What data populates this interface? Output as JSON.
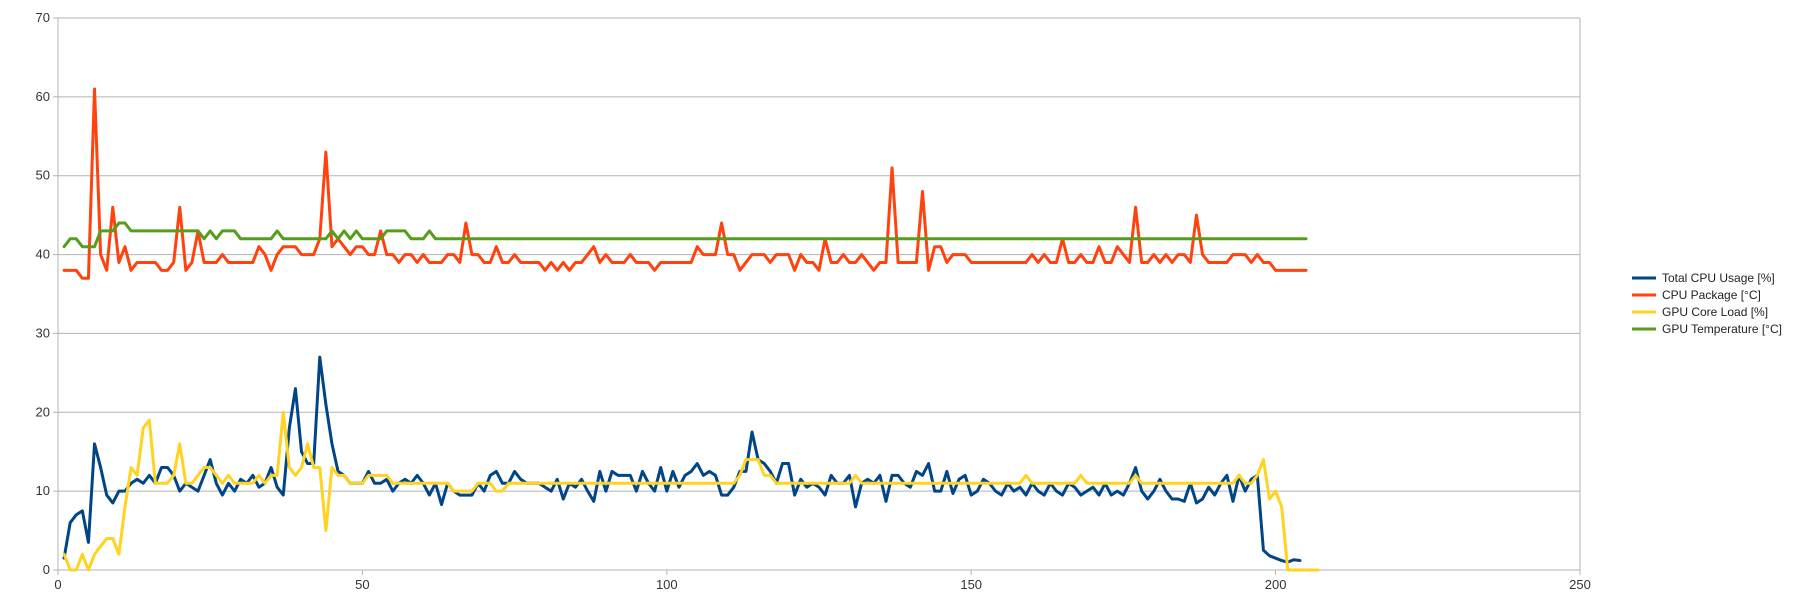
{
  "chart_data": {
    "type": "line",
    "title": "",
    "xlabel": "",
    "ylabel": "",
    "xlim": [
      0,
      250
    ],
    "ylim": [
      0,
      70
    ],
    "x_ticks": [
      0,
      50,
      100,
      150,
      200,
      250
    ],
    "y_ticks": [
      0,
      10,
      20,
      30,
      40,
      50,
      60,
      70
    ],
    "x_tick_labels": [
      "0",
      "50",
      "100",
      "150",
      "200",
      "250"
    ],
    "y_tick_labels": [
      "0",
      "10",
      "20",
      "30",
      "40",
      "50",
      "60",
      "70"
    ],
    "grid": "horizontal",
    "legend_position": "right",
    "x_start": 1,
    "x_step": 1,
    "series": [
      {
        "name": "Total CPU Usage [%]",
        "color": "#004586",
        "values": [
          1.5,
          6,
          7,
          7.5,
          3.5,
          16,
          13,
          9.5,
          8.5,
          10,
          10,
          11,
          11.5,
          11,
          12,
          11,
          13,
          13,
          12,
          10,
          11,
          10.5,
          10,
          12,
          14,
          11,
          9.5,
          11,
          10,
          11.5,
          11,
          12,
          10.5,
          11,
          13,
          10.5,
          9.5,
          18,
          23,
          15,
          13.5,
          13.5,
          27,
          21,
          16,
          12.5,
          12,
          11,
          11,
          11,
          12.5,
          11,
          11,
          11.5,
          10,
          11,
          11.5,
          11,
          12,
          11,
          9.5,
          11,
          8.3,
          11,
          10,
          9.5,
          9.5,
          9.5,
          11,
          10,
          12,
          12.5,
          11,
          11,
          12.5,
          11.5,
          11,
          11,
          11,
          10.5,
          10,
          11.5,
          9,
          11,
          10.5,
          11.5,
          10,
          8.7,
          12.5,
          10,
          12.5,
          12,
          12,
          12,
          10,
          12.5,
          11,
          10,
          13,
          10,
          12.5,
          10.5,
          12,
          12.5,
          13.5,
          12,
          12.5,
          12,
          9.5,
          9.5,
          10.5,
          12.5,
          12.5,
          17.5,
          14,
          13.5,
          12.5,
          11,
          13.5,
          13.5,
          9.5,
          11.5,
          10.5,
          11,
          10.5,
          9.5,
          12,
          11,
          11,
          12,
          8,
          11,
          11.5,
          11,
          12,
          8.7,
          12,
          12,
          11,
          10.5,
          12.5,
          12,
          13.5,
          10,
          10,
          12.5,
          9.7,
          11.5,
          12,
          9.5,
          10,
          11.5,
          11,
          10,
          9.5,
          11,
          10,
          10.5,
          9.5,
          11,
          10,
          9.5,
          11,
          10,
          9.5,
          11,
          10.5,
          9.5,
          10,
          10.5,
          9.5,
          11,
          9.5,
          10,
          9.5,
          11,
          13,
          10,
          9,
          10,
          11.5,
          10,
          9,
          9,
          8.7,
          11,
          8.5,
          9,
          10.5,
          9.5,
          11,
          12,
          8.7,
          12,
          10,
          11.5,
          12,
          2.5,
          1.8,
          1.5,
          1.2,
          1,
          1.3,
          1.2
        ]
      },
      {
        "name": "CPU Package [°C]",
        "color": "#ff420e",
        "values": [
          38,
          38,
          38,
          37,
          37,
          61,
          40,
          38,
          46,
          39,
          41,
          38,
          39,
          39,
          39,
          39,
          38,
          38,
          39,
          46,
          38,
          39,
          43,
          39,
          39,
          39,
          40,
          39,
          39,
          39,
          39,
          39,
          41,
          40,
          38,
          40,
          41,
          41,
          41,
          40,
          40,
          40,
          42,
          53,
          41,
          42,
          41,
          40,
          41,
          41,
          40,
          40,
          43,
          40,
          40,
          39,
          40,
          40,
          39,
          40,
          39,
          39,
          39,
          40,
          40,
          39,
          44,
          40,
          40,
          39,
          39,
          41,
          39,
          39,
          40,
          39,
          39,
          39,
          39,
          38,
          39,
          38,
          39,
          38,
          39,
          39,
          40,
          41,
          39,
          40,
          39,
          39,
          39,
          40,
          39,
          39,
          39,
          38,
          39,
          39,
          39,
          39,
          39,
          39,
          41,
          40,
          40,
          40,
          44,
          40,
          40,
          38,
          39,
          40,
          40,
          40,
          39,
          40,
          40,
          40,
          38,
          40,
          39,
          39,
          38,
          42,
          39,
          39,
          40,
          39,
          39,
          40,
          39,
          38,
          39,
          39,
          51,
          39,
          39,
          39,
          39,
          48,
          38,
          41,
          41,
          39,
          40,
          40,
          40,
          39,
          39,
          39,
          39,
          39,
          39,
          39,
          39,
          39,
          39,
          40,
          39,
          40,
          39,
          39,
          42,
          39,
          39,
          40,
          39,
          39,
          41,
          39,
          39,
          41,
          40,
          39,
          46,
          39,
          39,
          40,
          39,
          40,
          39,
          40,
          40,
          39,
          45,
          40,
          39,
          39,
          39,
          39,
          40,
          40,
          40,
          39,
          40,
          39,
          39,
          38,
          38,
          38,
          38,
          38,
          38
        ]
      },
      {
        "name": "GPU Core Load [%]",
        "color": "#ffd320",
        "values": [
          2,
          0,
          0,
          2,
          0,
          2,
          3,
          4,
          4,
          2,
          8,
          13,
          12,
          18,
          19,
          11,
          11,
          11,
          12,
          16,
          11,
          11,
          12,
          13,
          13,
          12,
          11,
          12,
          11,
          11,
          11,
          11,
          12,
          11,
          12,
          12,
          20,
          13,
          12,
          13,
          16,
          13,
          13,
          5,
          13,
          12,
          12,
          11,
          11,
          11,
          12,
          12,
          12,
          12,
          11,
          11,
          11,
          11,
          11,
          11,
          11,
          11,
          11,
          11,
          10,
          10,
          10,
          10,
          11,
          11,
          11,
          10,
          10,
          11,
          11,
          11,
          11,
          11,
          11,
          11,
          11,
          11,
          11,
          11,
          11,
          11,
          11,
          11,
          11,
          11,
          11,
          11,
          11,
          11,
          11,
          11,
          11,
          11,
          11,
          11,
          11,
          11,
          11,
          11,
          11,
          11,
          11,
          11,
          11,
          11,
          11,
          12,
          14,
          14,
          14,
          12,
          12,
          11,
          11,
          11,
          11,
          11,
          11,
          11,
          11,
          11,
          11,
          11,
          11,
          11,
          12,
          11,
          11,
          11,
          11,
          11,
          11,
          11,
          11,
          11,
          11,
          11,
          11,
          11,
          11,
          11,
          11,
          11,
          11,
          11,
          11,
          11,
          11,
          11,
          11,
          11,
          11,
          11,
          12,
          11,
          11,
          11,
          11,
          11,
          11,
          11,
          11,
          12,
          11,
          11,
          11,
          11,
          11,
          11,
          11,
          11,
          12,
          11,
          11,
          11,
          11,
          11,
          11,
          11,
          11,
          11,
          11,
          11,
          11,
          11,
          11,
          11,
          11,
          12,
          11,
          11,
          12,
          14,
          9,
          10,
          8,
          0,
          0,
          0,
          0,
          0,
          0
        ]
      },
      {
        "name": "GPU Temperature [°C]",
        "color": "#579d1c",
        "values": [
          41,
          42,
          42,
          41,
          41,
          41,
          43,
          43,
          43,
          44,
          44,
          43,
          43,
          43,
          43,
          43,
          43,
          43,
          43,
          43,
          43,
          43,
          43,
          42,
          43,
          42,
          43,
          43,
          43,
          42,
          42,
          42,
          42,
          42,
          42,
          43,
          42,
          42,
          42,
          42,
          42,
          42,
          42,
          42,
          43,
          42,
          43,
          42,
          43,
          42,
          42,
          42,
          42,
          43,
          43,
          43,
          43,
          42,
          42,
          42,
          43,
          42,
          42,
          42,
          42,
          42,
          42,
          42,
          42,
          42,
          42,
          42,
          42,
          42,
          42,
          42,
          42,
          42,
          42,
          42,
          42,
          42,
          42,
          42,
          42,
          42,
          42,
          42,
          42,
          42,
          42,
          42,
          42,
          42,
          42,
          42,
          42,
          42,
          42,
          42,
          42,
          42,
          42,
          42,
          42,
          42,
          42,
          42,
          42,
          42,
          42,
          42,
          42,
          42,
          42,
          42,
          42,
          42,
          42,
          42,
          42,
          42,
          42,
          42,
          42,
          42,
          42,
          42,
          42,
          42,
          42,
          42,
          42,
          42,
          42,
          42,
          42,
          42,
          42,
          42,
          42,
          42,
          42,
          42,
          42,
          42,
          42,
          42,
          42,
          42,
          42,
          42,
          42,
          42,
          42,
          42,
          42,
          42,
          42,
          42,
          42,
          42,
          42,
          42,
          42,
          42,
          42,
          42,
          42,
          42,
          42,
          42,
          42,
          42,
          42,
          42,
          42,
          42,
          42,
          42,
          42,
          42,
          42,
          42,
          42,
          42,
          42,
          42,
          42,
          42,
          42,
          42,
          42,
          42,
          42,
          42,
          42,
          42,
          42,
          42,
          42,
          42,
          42,
          42,
          42
        ]
      }
    ]
  }
}
